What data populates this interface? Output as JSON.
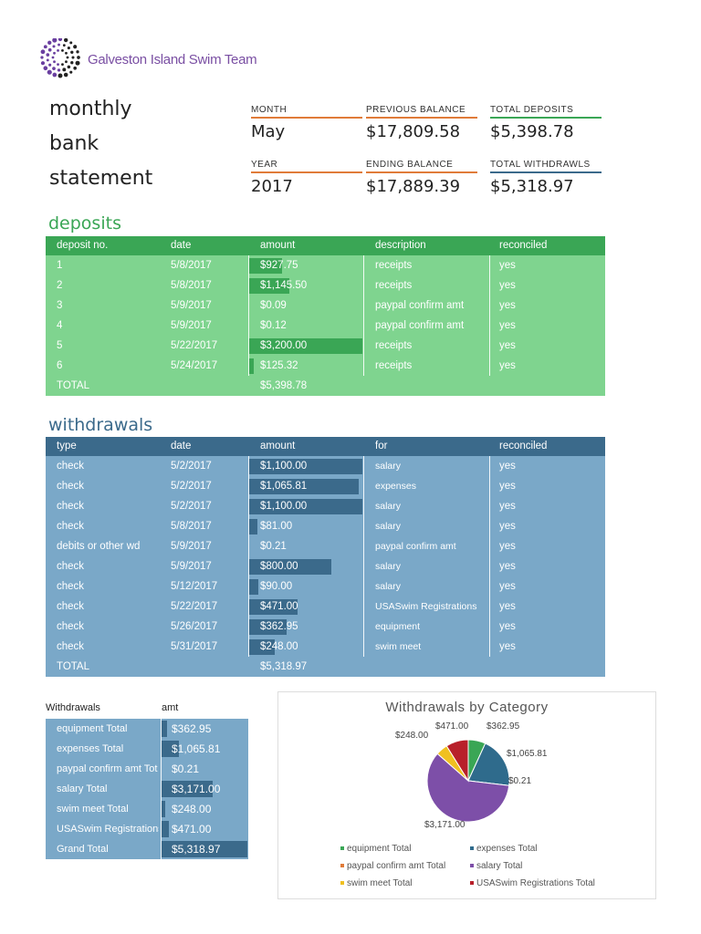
{
  "logo": {
    "text": "Galveston Island Swim Team"
  },
  "title": {
    "lines": [
      "monthly",
      "bank",
      "statement"
    ]
  },
  "summary": {
    "month_label": "MONTH",
    "month": "May",
    "prev_label": "PREVIOUS BALANCE",
    "prev": "$17,809.58",
    "dep_label": "TOTAL DEPOSITS",
    "dep": "$5,398.78",
    "year_label": "YEAR",
    "year": "2017",
    "end_label": "ENDING BALANCE",
    "end": "$17,889.39",
    "wd_label": "TOTAL WITHDRAWLS",
    "wd": "$5,318.97"
  },
  "colors": {
    "orange": "#e07b39",
    "green": "#3aa655",
    "blue": "#3b6a8b",
    "dep_header": "#3aa655",
    "dep_row": "#7fd48f",
    "wd_header": "#3b6a8b",
    "wd_row": "#7aa8c8"
  },
  "deposits": {
    "title": "deposits",
    "headers": [
      "deposit no.",
      "date",
      "amount",
      "description",
      "reconciled"
    ],
    "rows": [
      {
        "no": "1",
        "date": "5/8/2017",
        "amount": "$927.75",
        "value": 927.75,
        "desc": "receipts",
        "rec": "yes"
      },
      {
        "no": "2",
        "date": "5/8/2017",
        "amount": "$1,145.50",
        "value": 1145.5,
        "desc": "receipts",
        "rec": "yes"
      },
      {
        "no": "3",
        "date": "5/9/2017",
        "amount": "$0.09",
        "value": 0.09,
        "desc": "paypal confirm amt",
        "rec": "yes"
      },
      {
        "no": "4",
        "date": "5/9/2017",
        "amount": "$0.12",
        "value": 0.12,
        "desc": "paypal confirm amt",
        "rec": "yes"
      },
      {
        "no": "5",
        "date": "5/22/2017",
        "amount": "$3,200.00",
        "value": 3200.0,
        "desc": "receipts",
        "rec": "yes"
      },
      {
        "no": "6",
        "date": "5/24/2017",
        "amount": "$125.32",
        "value": 125.32,
        "desc": "receipts",
        "rec": "yes"
      }
    ],
    "total_label": "TOTAL",
    "total": "$5,398.78"
  },
  "withdrawals": {
    "title": "withdrawals",
    "headers": [
      "type",
      "date",
      "amount",
      "for",
      "reconciled"
    ],
    "rows": [
      {
        "type": "check",
        "date": "5/2/2017",
        "amount": "$1,100.00",
        "value": 1100,
        "for": "salary",
        "rec": "yes"
      },
      {
        "type": "check",
        "date": "5/2/2017",
        "amount": "$1,065.81",
        "value": 1065.81,
        "for": "expenses",
        "rec": "yes"
      },
      {
        "type": "check",
        "date": "5/2/2017",
        "amount": "$1,100.00",
        "value": 1100,
        "for": "salary",
        "rec": "yes"
      },
      {
        "type": "check",
        "date": "5/8/2017",
        "amount": "$81.00",
        "value": 81,
        "for": "salary",
        "rec": "yes"
      },
      {
        "type": "debits or other wd",
        "date": "5/9/2017",
        "amount": "$0.21",
        "value": 0.21,
        "for": "paypal confirm amt",
        "rec": "yes"
      },
      {
        "type": "check",
        "date": "5/9/2017",
        "amount": "$800.00",
        "value": 800,
        "for": "salary",
        "rec": "yes"
      },
      {
        "type": "check",
        "date": "5/12/2017",
        "amount": "$90.00",
        "value": 90,
        "for": "salary",
        "rec": "yes"
      },
      {
        "type": "check",
        "date": "5/22/2017",
        "amount": "$471.00",
        "value": 471,
        "for": "USASwim Registrations",
        "rec": "yes"
      },
      {
        "type": "check",
        "date": "5/26/2017",
        "amount": "$362.95",
        "value": 362.95,
        "for": "equipment",
        "rec": "yes"
      },
      {
        "type": "check",
        "date": "5/31/2017",
        "amount": "$248.00",
        "value": 248,
        "for": "swim meet",
        "rec": "yes"
      }
    ],
    "total_label": "TOTAL",
    "total": "$5,318.97"
  },
  "pivot": {
    "headers": [
      "Withdrawals",
      "amt"
    ],
    "rows": [
      {
        "label": "equipment Total",
        "amount": "$362.95",
        "value": 362.95
      },
      {
        "label": "expenses Total",
        "amount": "$1,065.81",
        "value": 1065.81
      },
      {
        "label": "paypal confirm amt Tot",
        "amount": "$0.21",
        "value": 0.21
      },
      {
        "label": "salary Total",
        "amount": "$3,171.00",
        "value": 3171
      },
      {
        "label": "swim meet Total",
        "amount": "$248.00",
        "value": 248
      },
      {
        "label": "USASwim Registrations",
        "amount": "$471.00",
        "value": 471
      }
    ],
    "grand_label": "Grand Total",
    "grand": "$5,318.97",
    "grand_value": 5318.97
  },
  "chart_data": {
    "type": "pie",
    "title": "Withdrawals by Category",
    "categories": [
      "equipment Total",
      "expenses Total",
      "paypal confirm amt Total",
      "salary Total",
      "swim meet Total",
      "USASwim Registrations Total"
    ],
    "values": [
      362.95,
      1065.81,
      0.21,
      3171.0,
      248.0,
      471.0
    ],
    "labels": [
      "$362.95",
      "$1,065.81",
      "$0.21",
      "$3,171.00",
      "$248.00",
      "$471.00"
    ],
    "colors": [
      "#3aa655",
      "#2f6b8c",
      "#e07b39",
      "#7d4fa8",
      "#f0c020",
      "#b8202a"
    ],
    "legend": "bottom"
  }
}
